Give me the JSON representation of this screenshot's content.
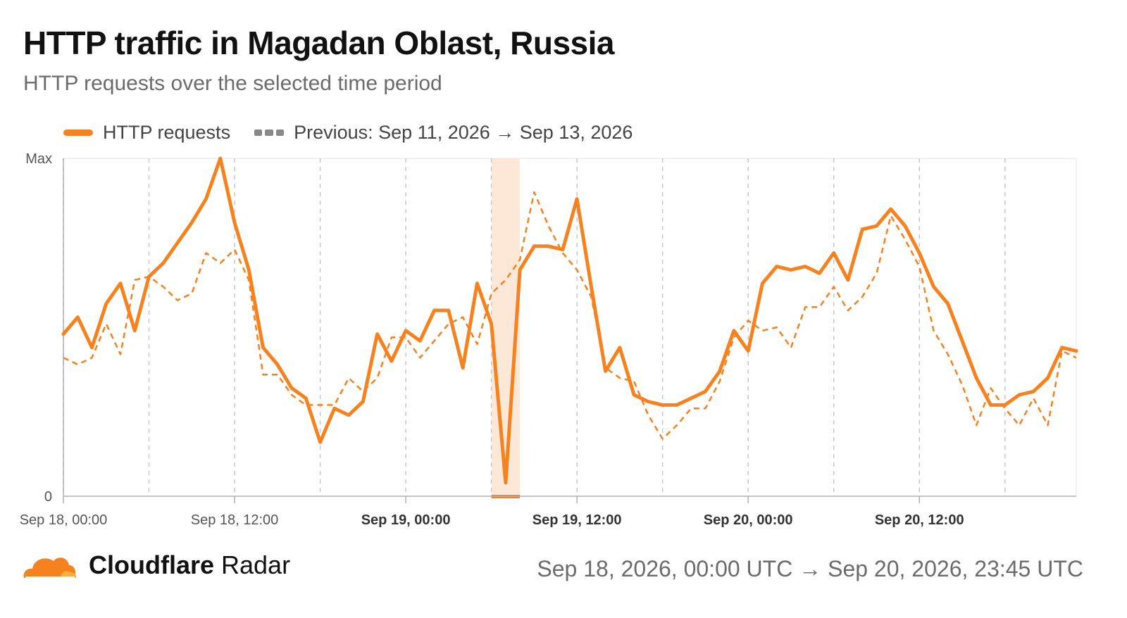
{
  "header": {
    "title": "HTTP traffic in Magadan Oblast, Russia",
    "subtitle": "HTTP requests over the selected time period"
  },
  "legend": {
    "current_label": "HTTP requests",
    "previous_label": "Previous: Sep 11, 2026 → Sep 13, 2026"
  },
  "footer": {
    "brand_bold": "Cloudflare",
    "brand_light": " Radar",
    "date_range": "Sep 18, 2026, 00:00 UTC → Sep 20, 2026, 23:45 UTC"
  },
  "colors": {
    "current": "#f6821f",
    "previous": "#f6821f",
    "highlight": "#fde3cf"
  },
  "chart_data": {
    "type": "line",
    "x_unit": "hours since Sep 18, 2026, 00:00 UTC",
    "xlim": [
      0,
      71
    ],
    "ylim": [
      0,
      100
    ],
    "y_tick_labels": [
      {
        "value": 100,
        "label": "Max"
      },
      {
        "value": 0,
        "label": "0"
      }
    ],
    "x_ticks": [
      {
        "x": 0,
        "label": "Sep 18, 00:00",
        "bold": false
      },
      {
        "x": 12,
        "label": "Sep 18, 12:00",
        "bold": false
      },
      {
        "x": 24,
        "label": "Sep 19, 00:00",
        "bold": true
      },
      {
        "x": 36,
        "label": "Sep 19, 12:00",
        "bold": true
      },
      {
        "x": 48,
        "label": "Sep 20, 00:00",
        "bold": true
      },
      {
        "x": 60,
        "label": "Sep 20, 12:00",
        "bold": true
      }
    ],
    "vertical_gridlines_x": [
      0,
      6,
      12,
      18,
      24,
      30,
      36,
      42,
      48,
      54,
      60,
      66
    ],
    "highlight_range": [
      30,
      32
    ],
    "series": [
      {
        "name": "HTTP requests",
        "style": "solid",
        "x": [
          0,
          1,
          2,
          3,
          4,
          5,
          6,
          7,
          8,
          9,
          10,
          11,
          12,
          13,
          14,
          15,
          16,
          17,
          18,
          19,
          20,
          21,
          22,
          23,
          24,
          25,
          26,
          27,
          28,
          29,
          30,
          31,
          32,
          33,
          34,
          35,
          36,
          37,
          38,
          39,
          40,
          41,
          42,
          43,
          44,
          45,
          46,
          47,
          48,
          49,
          50,
          51,
          52,
          53,
          54,
          55,
          56,
          57,
          58,
          59,
          60,
          61,
          62,
          63,
          64,
          65,
          66,
          67,
          68,
          69,
          70,
          71
        ],
        "values": [
          48,
          53,
          44,
          57,
          63,
          49,
          65,
          69,
          75,
          81,
          88,
          100,
          81,
          67,
          44,
          39,
          32,
          29,
          16,
          26,
          24,
          28,
          48,
          40,
          49,
          46,
          55,
          55,
          38,
          63,
          51,
          4,
          67,
          74,
          74,
          73,
          88,
          62,
          37,
          44,
          30,
          28,
          27,
          27,
          29,
          31,
          37,
          49,
          43,
          63,
          68,
          67,
          68,
          66,
          72,
          64,
          79,
          80,
          85,
          80,
          72,
          62,
          57,
          46,
          35,
          27,
          27,
          30,
          31,
          35,
          44,
          43
        ]
      },
      {
        "name": "Previous: Sep 11, 2026 → Sep 13, 2026",
        "style": "dashed",
        "x": [
          0,
          1,
          2,
          3,
          4,
          5,
          6,
          7,
          8,
          9,
          10,
          11,
          12,
          13,
          14,
          15,
          16,
          17,
          18,
          19,
          20,
          21,
          22,
          23,
          24,
          25,
          26,
          27,
          28,
          29,
          30,
          31,
          32,
          33,
          34,
          35,
          36,
          37,
          38,
          39,
          40,
          41,
          42,
          43,
          44,
          45,
          46,
          47,
          48,
          49,
          50,
          51,
          52,
          53,
          54,
          55,
          56,
          57,
          58,
          59,
          60,
          61,
          62,
          63,
          64,
          65,
          66,
          67,
          68,
          69,
          70,
          71
        ],
        "values": [
          41,
          39,
          41,
          51,
          42,
          64,
          65,
          62,
          58,
          60,
          72,
          69,
          73,
          64,
          36,
          36,
          30,
          27,
          27,
          27,
          35,
          31,
          35,
          47,
          47,
          41,
          46,
          51,
          53,
          45,
          60,
          64,
          70,
          90,
          80,
          72,
          67,
          59,
          38,
          35,
          34,
          24,
          17,
          21,
          26,
          26,
          34,
          47,
          52,
          49,
          50,
          44,
          56,
          56,
          62,
          55,
          59,
          66,
          83,
          76,
          68,
          49,
          42,
          33,
          21,
          32,
          26,
          21,
          29,
          21,
          43,
          41
        ]
      }
    ]
  }
}
